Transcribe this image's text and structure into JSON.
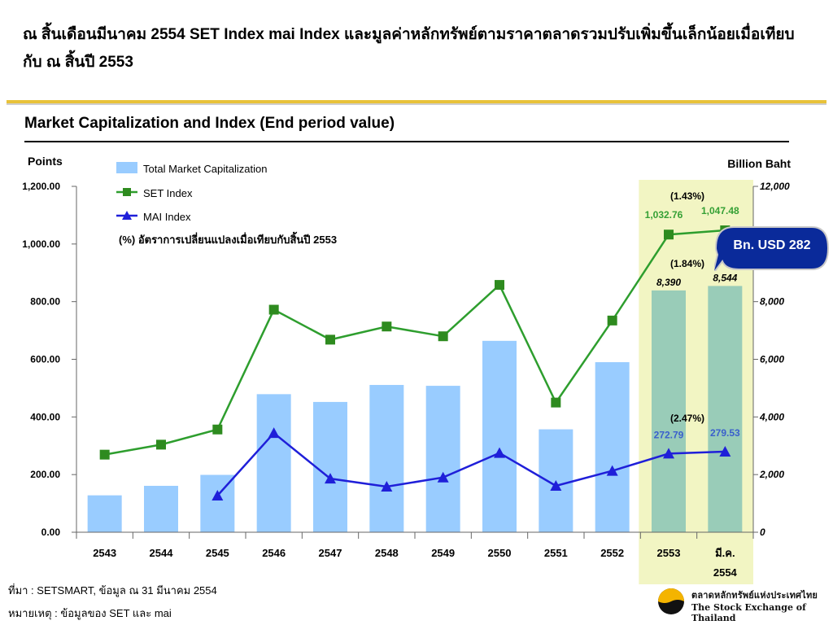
{
  "header": {
    "headline": "ณ สิ้นเดือนมีนาคม 2554 SET Index mai Index และมูลค่าหลักทรัพย์ตามราคาตลาดรวมปรับเพิ่มขึ้นเล็กน้อยเมื่อเทียบกับ ณ สิ้นปี 2553",
    "subtitle": "Market Capitalization and Index (End period value)"
  },
  "chart_data": {
    "type": "bar",
    "categories": [
      "2543",
      "2544",
      "2545",
      "2546",
      "2547",
      "2548",
      "2549",
      "2550",
      "2551",
      "2552",
      "2553",
      "มี.ค.\n2554"
    ],
    "ylabel_left": "Points",
    "ylabel_right": "Billion Baht",
    "ylim_left": [
      0,
      1200
    ],
    "ylim_right": [
      0,
      12000
    ],
    "left_ticks": [
      "0.00",
      "200.00",
      "400.00",
      "600.00",
      "800.00",
      "1,000.00",
      "1,200.00"
    ],
    "right_ticks": [
      "0",
      "2,000",
      "4,000",
      "6,000",
      "8,000",
      "10,000",
      "12,000"
    ],
    "series": [
      {
        "name": "Total Market Capitalization",
        "type": "bar",
        "axis": "right",
        "values": [
          1280,
          1610,
          1990,
          4790,
          4520,
          5110,
          5080,
          6640,
          3570,
          5900,
          8390,
          8544
        ],
        "data_labels": [
          "",
          "",
          "",
          "",
          "",
          "",
          "",
          "",
          "",
          "",
          "8,390",
          "8,544"
        ]
      },
      {
        "name": "SET Index",
        "type": "line",
        "axis": "left",
        "values": [
          269.19,
          303.85,
          356.48,
          772.15,
          668.1,
          713.73,
          679.84,
          858.1,
          449.96,
          734.54,
          1032.76,
          1047.48
        ],
        "data_labels": [
          "",
          "",
          "",
          "",
          "",
          "",
          "",
          "",
          "",
          "",
          "1,032.76",
          "1,047.48"
        ]
      },
      {
        "name": "MAI Index",
        "type": "line",
        "axis": "left",
        "values": [
          null,
          null,
          127,
          344,
          186,
          158,
          190,
          275,
          161,
          213,
          272.79,
          279.53
        ],
        "data_labels": [
          "",
          "",
          "",
          "",
          "",
          "",
          "",
          "",
          "",
          "",
          "272.79",
          "279.53"
        ]
      }
    ],
    "legend_note": "(%)  อัตราการเปลี่ยนแปลงเมื่อเทียบกับสิ้นปี 2553",
    "annotations": {
      "set_change": "(1.43%)",
      "cap_change": "(1.84%)",
      "mai_change": "(2.47%)",
      "usd_callout": "Bn. USD 282"
    },
    "legend_placement": "top-left",
    "grid": false,
    "colors": {
      "bar": "#99ccff",
      "bar_highlight": "#99ccb8",
      "highlight_bg": "#f2f5c3",
      "set_line": "#2e9e2e",
      "set_marker": "#2e8b1f",
      "mai_line": "#1f1fd9",
      "set_label": "#35a035",
      "mai_label": "#3a5fcc",
      "callout": "#0a2a9a"
    }
  },
  "footer": {
    "source": "ที่มา : SETSMART, ข้อมูล ณ 31 มีนาคม 2554",
    "note": "หมายเหตุ : ข้อมูลของ SET และ mai",
    "logo_th": "ตลาดหลักทรัพย์แห่งประเทศไทย",
    "logo_en": "The Stock Exchange of Thailand"
  }
}
